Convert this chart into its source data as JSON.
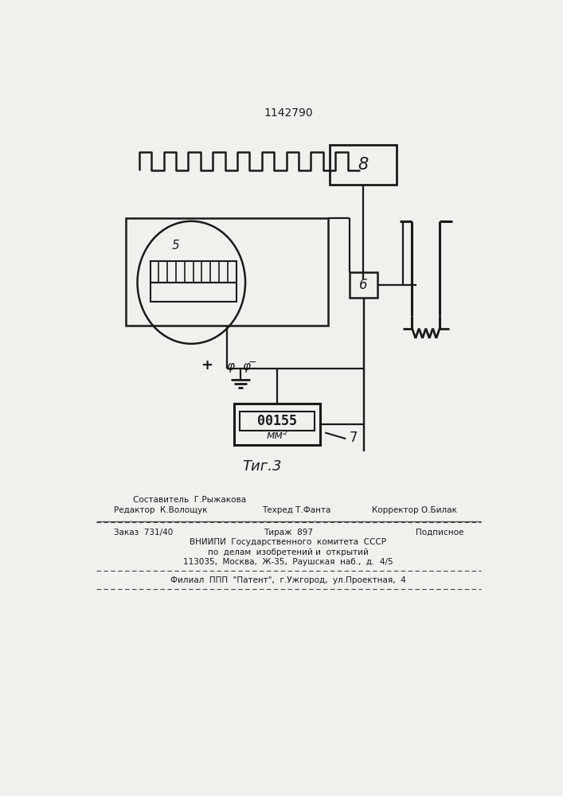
{
  "title": "1142790",
  "fig_caption": "Τиг.3",
  "background_color": "#f0f0ec",
  "line_color": "#1a1a1a",
  "label_8": "8",
  "label_6": "6",
  "label_5": "5",
  "label_7": "7",
  "display_value": "00155",
  "display_unit": "мм²",
  "plus_symbol": "+",
  "minus_symbol": "−",
  "phi_symbol": "φ",
  "footer_line1_left": "Редактор  К.Волощук",
  "footer_line1_mid": "Составитель  Г.Рыжакова",
  "footer_line1_tech": "Техред Т.Фанта",
  "footer_line1_corr": "Корректор О.Билак",
  "footer_line2_left": "Заказ  731/40",
  "footer_line2_mid": "Тираж  897",
  "footer_line2_right": "Подписное",
  "footer_line3": "ВНИИПИ  Государственного  комитета  СССР",
  "footer_line4": "по  делам  изобретений и  открытий",
  "footer_line5": "113035,  Москва,  Ж-35,  Раушская  наб.,  д.  4/5",
  "footer_line6": "Филиал  ППП  \"Патент\",  г.Ужгород,  ул.Проектная,  4"
}
